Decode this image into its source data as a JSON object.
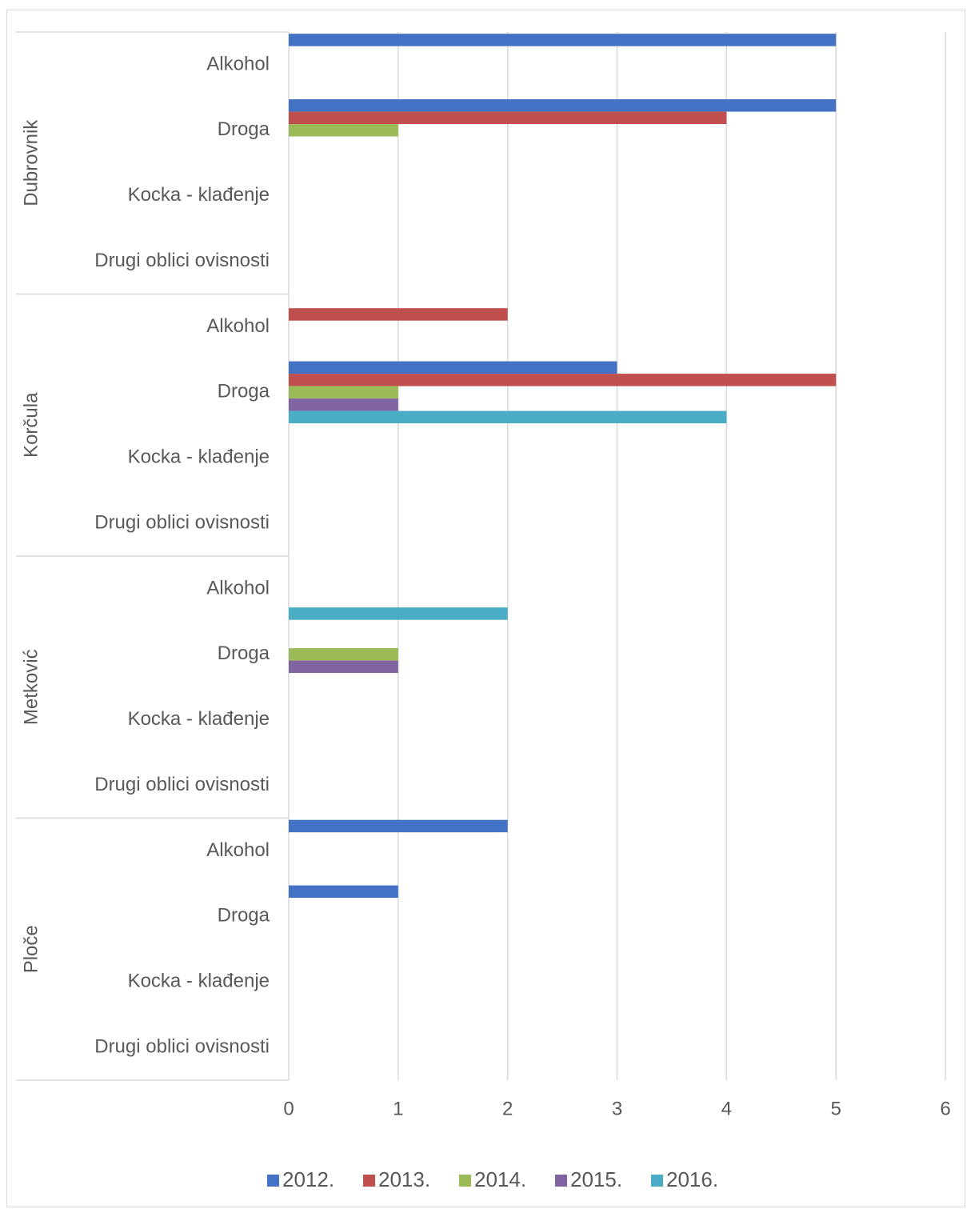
{
  "chart_data": {
    "type": "bar",
    "orientation": "horizontal",
    "groups": [
      "Dubrovnik",
      "Korčula",
      "Metković",
      "Ploče"
    ],
    "categories": [
      "Alkohol",
      "Droga",
      "Kocka - klađenje",
      "Drugi oblici ovisnosti"
    ],
    "series": [
      {
        "name": "2012.",
        "color": "#4472C4",
        "values": [
          [
            5,
            5,
            0,
            0
          ],
          [
            0,
            3,
            0,
            0
          ],
          [
            0,
            0,
            0,
            0
          ],
          [
            2,
            1,
            0,
            0
          ]
        ]
      },
      {
        "name": "2013.",
        "color": "#C0504D",
        "values": [
          [
            0,
            4,
            0,
            0
          ],
          [
            2,
            5,
            0,
            0
          ],
          [
            0,
            0,
            0,
            0
          ],
          [
            0,
            0,
            0,
            0
          ]
        ]
      },
      {
        "name": "2014.",
        "color": "#9BBB59",
        "values": [
          [
            0,
            1,
            0,
            0
          ],
          [
            0,
            1,
            0,
            0
          ],
          [
            0,
            1,
            0,
            0
          ],
          [
            0,
            0,
            0,
            0
          ]
        ]
      },
      {
        "name": "2015.",
        "color": "#8064A2",
        "values": [
          [
            0,
            0,
            0,
            0
          ],
          [
            0,
            1,
            0,
            0
          ],
          [
            0,
            1,
            0,
            0
          ],
          [
            0,
            0,
            0,
            0
          ]
        ]
      },
      {
        "name": "2016.",
        "color": "#4BACC6",
        "values": [
          [
            0,
            0,
            0,
            0
          ],
          [
            0,
            4,
            0,
            0
          ],
          [
            2,
            0,
            0,
            0
          ],
          [
            0,
            0,
            0,
            0
          ]
        ]
      }
    ],
    "xlim": [
      0,
      6
    ],
    "xticks": [
      0,
      1,
      2,
      3,
      4,
      5,
      6
    ],
    "grid": true,
    "legend_position": "bottom",
    "title": "",
    "xlabel": "",
    "ylabel": ""
  }
}
